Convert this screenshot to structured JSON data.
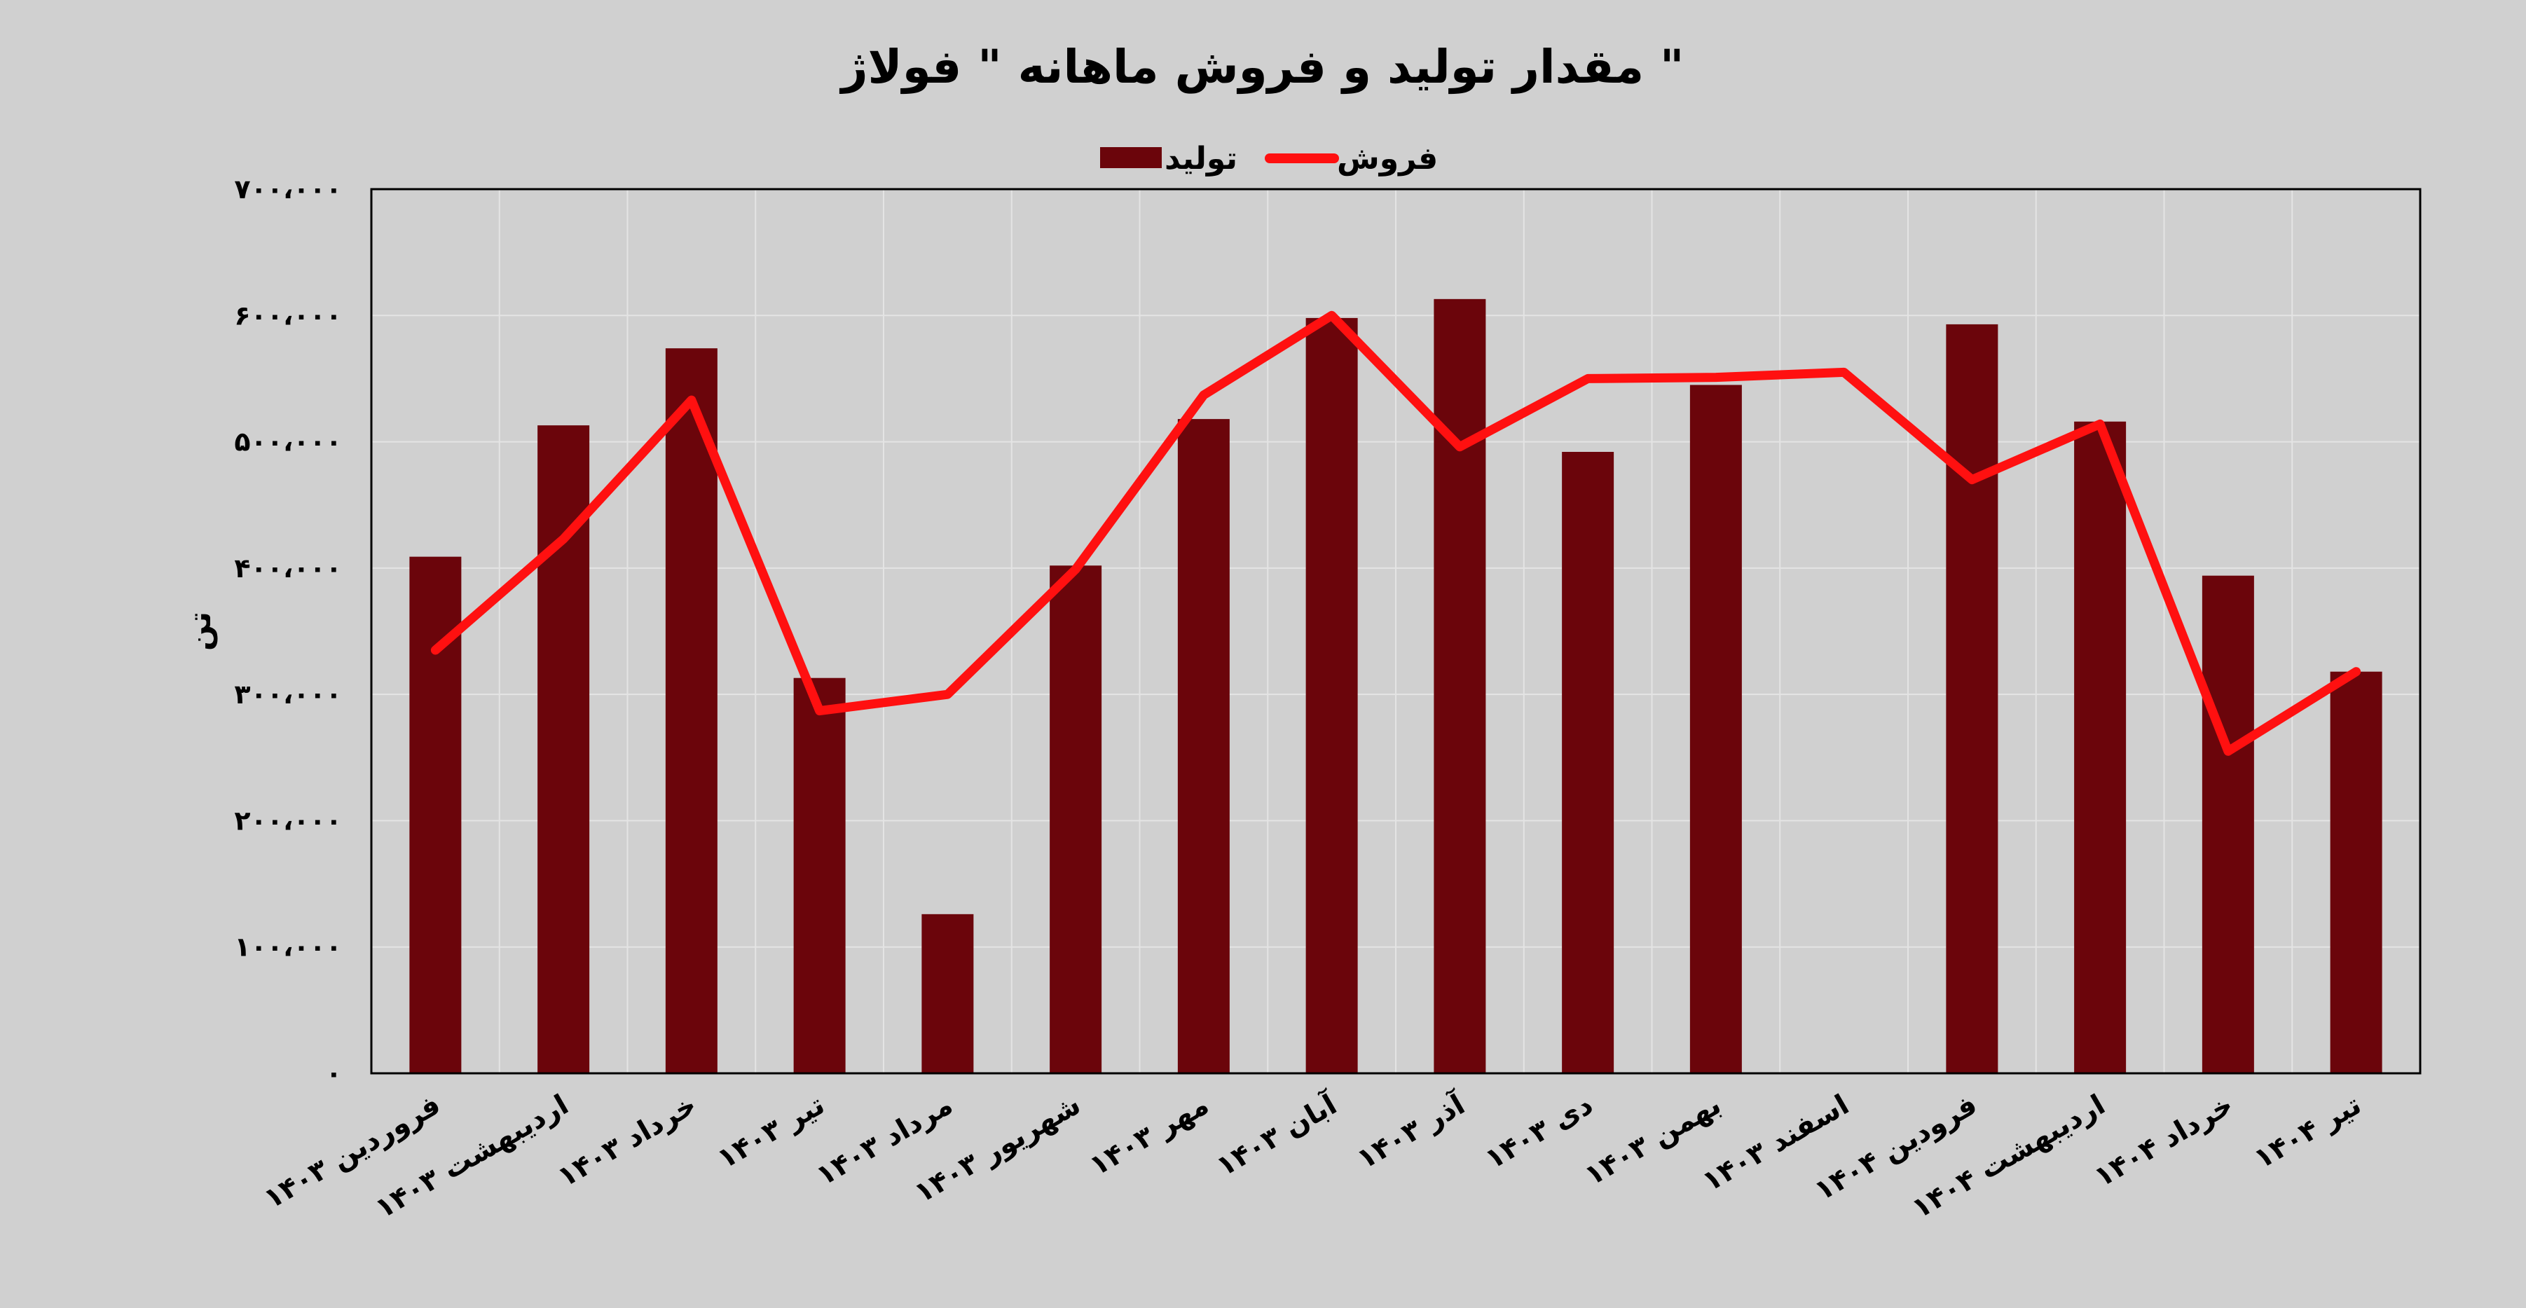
{
  "chart_data": {
    "type": "bar",
    "title": "مقدار تولید و فروش ماهانه \" فولاژ \"",
    "xlabel": "",
    "ylabel": "تن",
    "ylim": [
      0,
      700000
    ],
    "yticks": [
      0,
      100000,
      200000,
      300000,
      400000,
      500000,
      600000,
      700000
    ],
    "ytick_labels": [
      "۰",
      "۱۰۰،۰۰۰",
      "۲۰۰،۰۰۰",
      "۳۰۰،۰۰۰",
      "۴۰۰،۰۰۰",
      "۵۰۰،۰۰۰",
      "۶۰۰،۰۰۰",
      "۷۰۰،۰۰۰"
    ],
    "grid": true,
    "legend_position": "top-center",
    "categories": [
      "فروردین ۱۴۰۳",
      "اردیبهشت ۱۴۰۳",
      "خرداد ۱۴۰۳",
      "تیر ۱۴۰۳",
      "مرداد ۱۴۰۳",
      "شهریور ۱۴۰۳",
      "مهر ۱۴۰۳",
      "آبان ۱۴۰۳",
      "آذر ۱۴۰۳",
      "دی ۱۴۰۳",
      "بهمن ۱۴۰۳",
      "اسفند ۱۴۰۳",
      "فرودین ۱۴۰۴",
      "اردیبهشت ۱۴۰۴",
      "خرداد ۱۴۰۴",
      "تیر ۱۴۰۴"
    ],
    "series": [
      {
        "name": "تولید",
        "type": "bar",
        "color": "#6b050b",
        "values": [
          409000,
          513000,
          574000,
          313000,
          126000,
          402000,
          518000,
          598000,
          613000,
          492000,
          545000,
          null,
          593000,
          516000,
          394000,
          318000
        ]
      },
      {
        "name": "فروش",
        "type": "line",
        "color": "#ff1010",
        "values": [
          335000,
          423000,
          533000,
          287000,
          300000,
          399000,
          537000,
          600000,
          496000,
          550000,
          551000,
          555000,
          470000,
          514000,
          255000,
          318000
        ]
      }
    ]
  }
}
